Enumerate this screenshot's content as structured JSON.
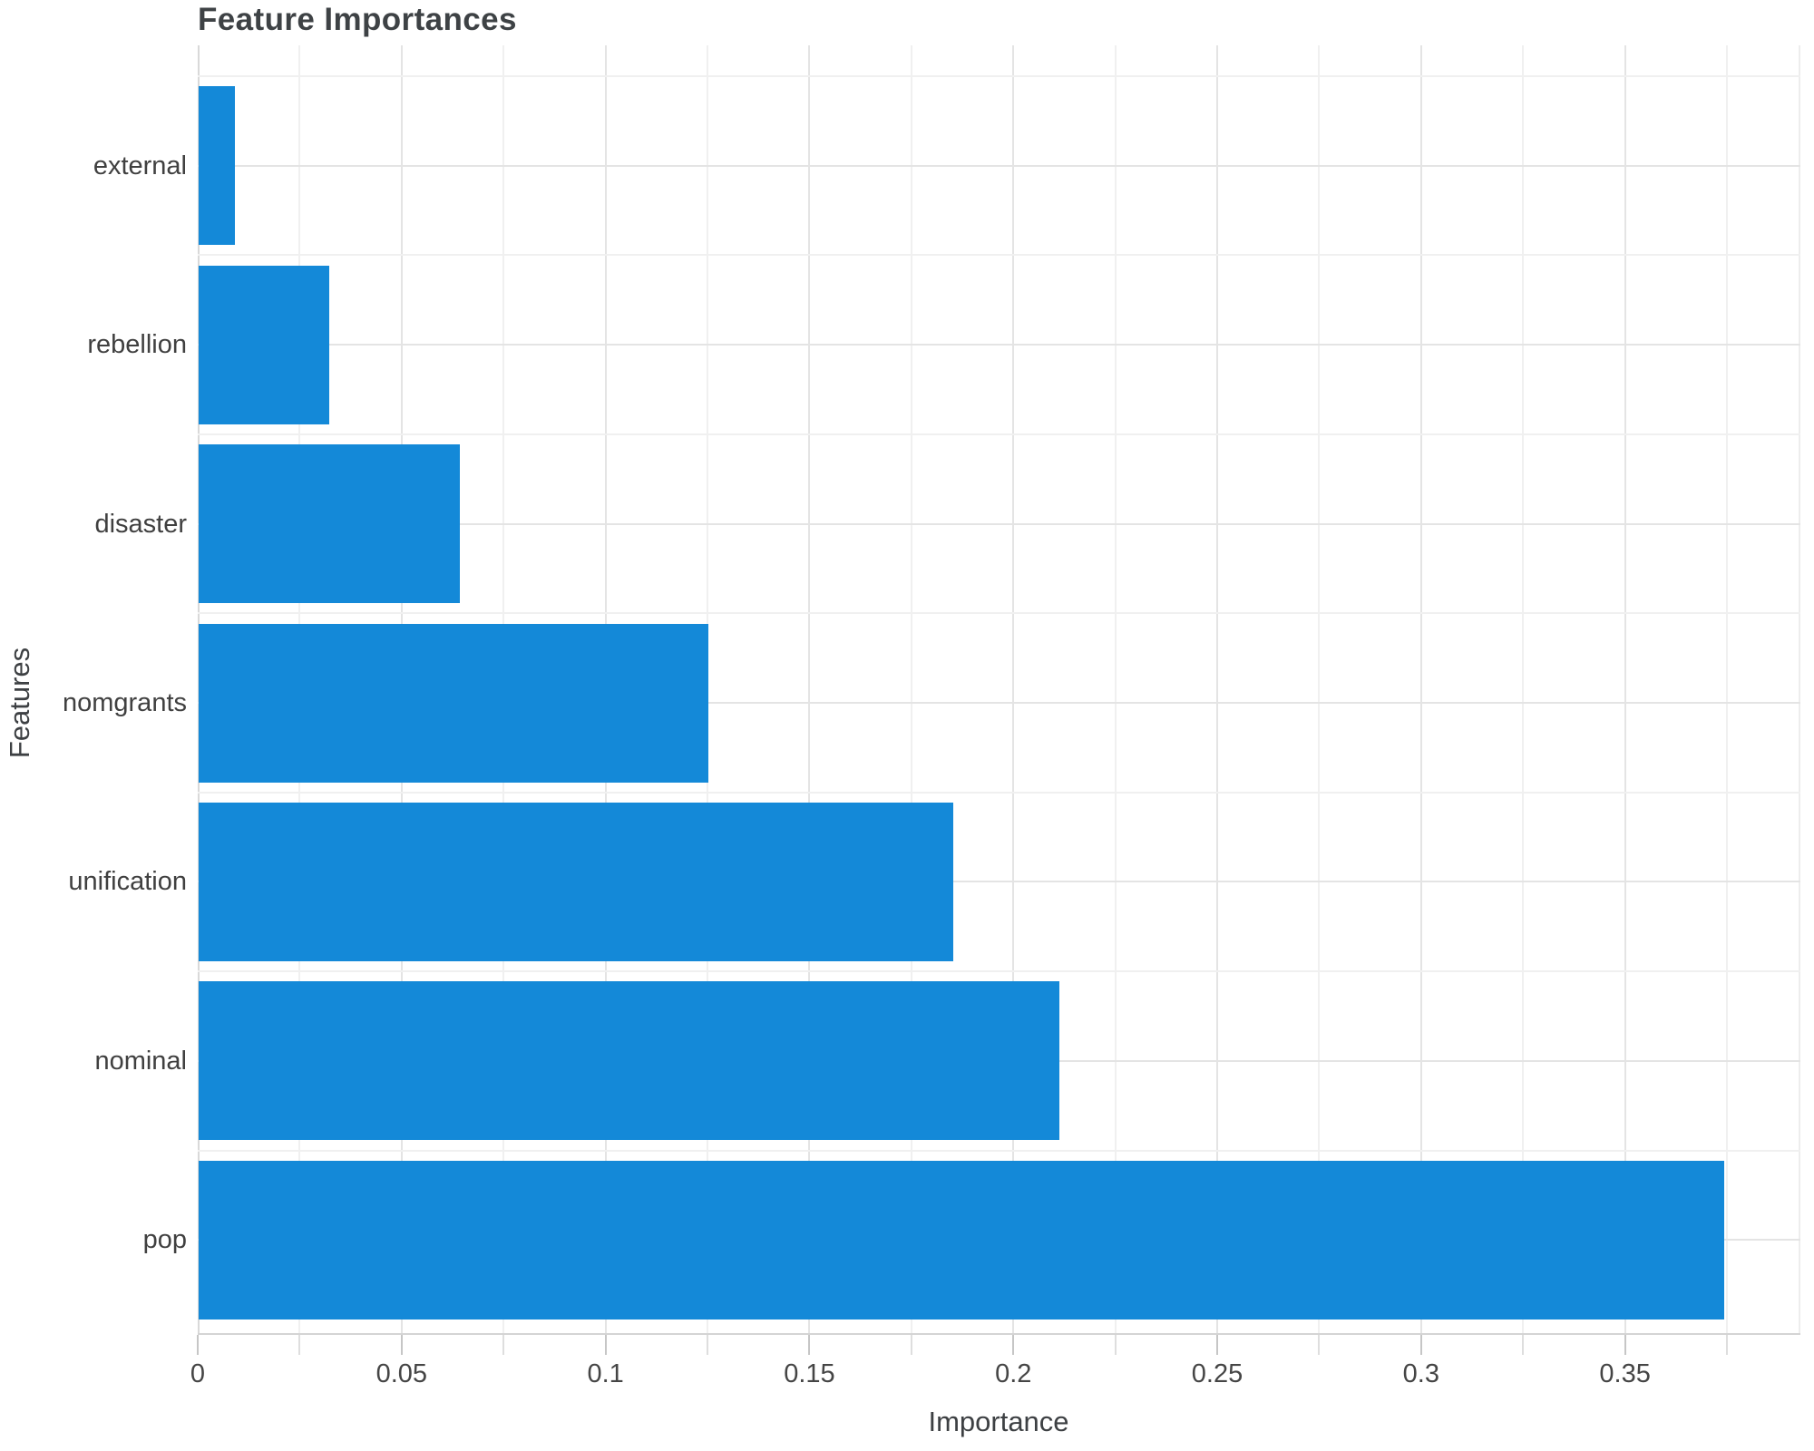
{
  "chart_data": {
    "type": "bar",
    "orientation": "horizontal",
    "title": "Feature Importances",
    "xlabel": "Importance",
    "ylabel": "Features",
    "legend": "none",
    "categories_top_to_bottom": [
      "external",
      "rebellion",
      "disaster",
      "nomgrants",
      "unification",
      "nominal",
      "pop"
    ],
    "values": [
      0.009,
      0.032,
      0.064,
      0.125,
      0.185,
      0.211,
      0.374
    ],
    "xlim": [
      0,
      0.393
    ],
    "x_major_ticks": [
      0,
      0.05,
      0.1,
      0.15,
      0.2,
      0.25,
      0.3,
      0.35
    ],
    "x_tick_labels": [
      "0",
      "0.05",
      "0.1",
      "0.15",
      "0.2",
      "0.25",
      "0.3",
      "0.35"
    ],
    "x_minor_step": 0.025,
    "grid": "major+minor, vertical at ticks, horizontal at band centers and boundaries",
    "bar_color": "#1489d8"
  },
  "style": {
    "background": "#ffffff",
    "grid_major": "#e4e4e4",
    "grid_minor": "#f0f0f0",
    "zero_line": "#d9d9d9",
    "axis_line": "#d4d4d4",
    "tick_major": "#c6c6c6",
    "tick_minor": "#dedede",
    "title_color": "#3e4245",
    "label_color": "#404040"
  }
}
